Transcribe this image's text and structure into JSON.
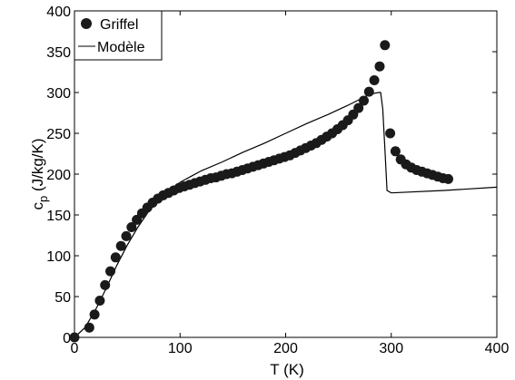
{
  "chart_data": {
    "type": "scatter",
    "xlabel": "T (K)",
    "ylabel_main": "c",
    "ylabel_sub": "p",
    "ylabel_rest": " (J/kg/K)",
    "xlim": [
      0,
      400
    ],
    "ylim": [
      0,
      400
    ],
    "xticks": [
      0,
      100,
      200,
      300,
      400
    ],
    "yticks": [
      0,
      50,
      100,
      150,
      200,
      250,
      300,
      350,
      400
    ],
    "grid": false,
    "legend_position": "top-left",
    "legend": {
      "griffel": "Griffel",
      "modele": "Modèle"
    },
    "series": [
      {
        "name": "Griffel",
        "style": "markers",
        "color": "#1a1a1a",
        "x": [
          0,
          14,
          19,
          24,
          29,
          34,
          39,
          44,
          49,
          54,
          59,
          64,
          69,
          74,
          79,
          84,
          89,
          94,
          99,
          104,
          109,
          114,
          119,
          124,
          129,
          134,
          139,
          144,
          149,
          154,
          159,
          164,
          169,
          174,
          179,
          184,
          189,
          194,
          199,
          204,
          209,
          214,
          219,
          224,
          229,
          234,
          239,
          244,
          249,
          254,
          259,
          264,
          269,
          274,
          279,
          284,
          289,
          294,
          299,
          304,
          309,
          314,
          319,
          324,
          329,
          334,
          339,
          344,
          349,
          354
        ],
        "y": [
          0,
          12,
          28,
          45,
          64,
          81,
          98,
          112,
          124,
          135,
          144,
          152,
          159,
          165,
          170,
          174,
          177,
          180,
          183,
          185,
          187,
          189,
          191,
          193,
          195,
          196,
          198,
          200,
          201,
          203,
          205,
          207,
          209,
          211,
          213,
          215,
          217,
          219,
          221,
          223,
          226,
          229,
          232,
          235,
          238,
          242,
          246,
          250,
          255,
          260,
          266,
          273,
          281,
          290,
          301,
          315,
          332,
          358,
          250,
          228,
          218,
          212,
          208,
          205,
          203,
          201,
          199,
          197,
          195,
          194
        ]
      },
      {
        "name": "Modèle",
        "style": "line",
        "color": "#000000",
        "x": [
          0,
          10,
          20,
          30,
          40,
          50,
          60,
          70,
          80,
          90,
          100,
          110,
          120,
          140,
          160,
          180,
          200,
          220,
          240,
          260,
          280,
          288,
          290,
          292,
          294,
          296,
          300,
          350,
          400
        ],
        "y": [
          0,
          12,
          34,
          60,
          88,
          113,
          135,
          154,
          168,
          180,
          190,
          197,
          204,
          215,
          227,
          238,
          250,
          262,
          273,
          285,
          298,
          300,
          300,
          280,
          230,
          180,
          177,
          180,
          184
        ]
      }
    ]
  }
}
